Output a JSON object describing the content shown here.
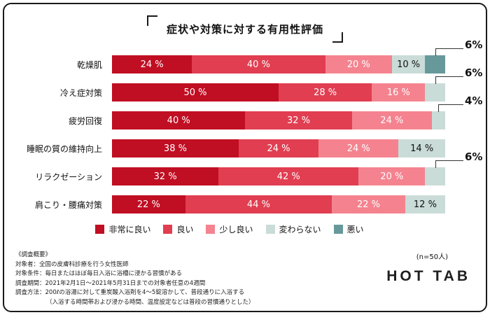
{
  "title": "症状や対策に対する有用性評価",
  "chart_data": {
    "type": "bar",
    "stacked": true,
    "orientation": "horizontal",
    "unit": "%",
    "xlim": [
      0,
      100
    ],
    "grid": false,
    "legend_position": "bottom",
    "categories": [
      "乾燥肌",
      "冷え症対策",
      "疲労回復",
      "睡眠の質の維持向上",
      "リラクゼーション",
      "肩こり・腰痛対策"
    ],
    "series": [
      {
        "name": "非常に良い",
        "color": "#c00e23",
        "values": [
          24,
          50,
          40,
          38,
          32,
          22
        ]
      },
      {
        "name": "良い",
        "color": "#e13e51",
        "values": [
          40,
          28,
          32,
          24,
          42,
          44
        ]
      },
      {
        "name": "少し良い",
        "color": "#f4838f",
        "values": [
          20,
          16,
          24,
          24,
          20,
          22
        ]
      },
      {
        "name": "変わらない",
        "color": "#cadcd8",
        "values": [
          10,
          6,
          4,
          14,
          6,
          12
        ]
      },
      {
        "name": "悪い",
        "color": "#67999b",
        "values": [
          6,
          0,
          0,
          0,
          0,
          0
        ]
      }
    ],
    "callouts": [
      {
        "category": "乾燥肌",
        "series": "悪い",
        "label": "6%"
      },
      {
        "category": "冷え症対策",
        "series": "変わらない",
        "label": "6%"
      },
      {
        "category": "疲労回復",
        "series": "変わらない",
        "label": "4%"
      },
      {
        "category": "リラクゼーション",
        "series": "変わらない",
        "label": "6%"
      }
    ]
  },
  "footer": {
    "note_lines": [
      "《調査概要》",
      "対象者：全国の皮膚科診療を行う女性医師",
      "対象条件：毎日またはほぼ毎日入浴に浴槽に浸かる習慣がある",
      "調査期間：2021年2月1日～2021年5月31日までの対象者任意の4週間",
      "調査方法：200ℓの浴湯に対して重炭酸入浴剤を4～5錠溶かして、普段通りに入浴する",
      "（入浴する時間帯および浸かる時間、温度設定などは普段の習慣通りとした）"
    ],
    "sample_size": "(n=50人)",
    "logo": "HOT TAB"
  }
}
